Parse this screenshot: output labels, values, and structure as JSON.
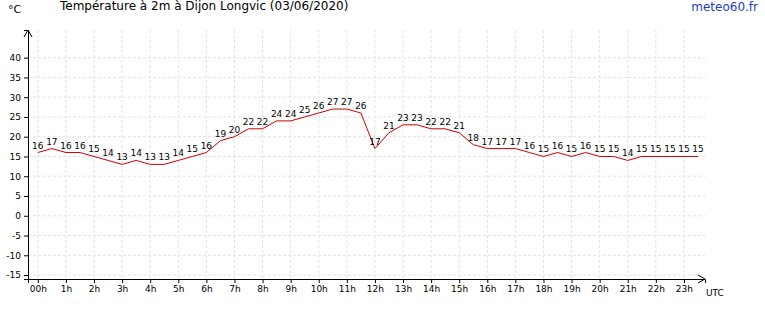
{
  "chart_data": {
    "type": "line",
    "title": "Température à 2m à Dijon Longvic (03/06/2020)",
    "y_label": "°C",
    "x_label": "UTC",
    "annotations": [
      "meteo60.fr"
    ],
    "x": [
      0,
      0.5,
      1,
      1.5,
      2,
      2.5,
      3,
      3.5,
      4,
      4.5,
      5,
      5.5,
      6,
      6.5,
      7,
      7.5,
      8,
      8.5,
      9,
      9.5,
      10,
      10.5,
      11,
      11.5,
      12,
      12.5,
      13,
      13.5,
      14,
      14.5,
      15,
      15.5,
      16,
      16.5,
      17,
      17.5,
      18,
      18.5,
      19,
      19.5,
      20,
      20.5,
      21,
      21.5,
      22,
      22.5,
      23,
      23.5
    ],
    "series": [
      {
        "name": "Température",
        "color": "#cc0000",
        "values": [
          16,
          17,
          16,
          16,
          15,
          14,
          13,
          14,
          13,
          13,
          14,
          15,
          16,
          19,
          20,
          22,
          22,
          24,
          24,
          25,
          26,
          27,
          27,
          26,
          17,
          21,
          23,
          23,
          22,
          22,
          21,
          18,
          17,
          17,
          17,
          16,
          15,
          16,
          15,
          16,
          15,
          15,
          14,
          15,
          15,
          15,
          15,
          15
        ]
      }
    ],
    "xlim": [
      -0.35,
      23.75
    ],
    "xticks": [
      {
        "value": 0,
        "label": "00h"
      },
      {
        "value": 1,
        "label": "1h"
      },
      {
        "value": 2,
        "label": "2h"
      },
      {
        "value": 3,
        "label": "3h"
      },
      {
        "value": 4,
        "label": "4h"
      },
      {
        "value": 5,
        "label": "5h"
      },
      {
        "value": 6,
        "label": "6h"
      },
      {
        "value": 7,
        "label": "7h"
      },
      {
        "value": 8,
        "label": "8h"
      },
      {
        "value": 9,
        "label": "9h"
      },
      {
        "value": 10,
        "label": "10h"
      },
      {
        "value": 11,
        "label": "11h"
      },
      {
        "value": 12,
        "label": "12h"
      },
      {
        "value": 13,
        "label": "13h"
      },
      {
        "value": 14,
        "label": "14h"
      },
      {
        "value": 15,
        "label": "15h"
      },
      {
        "value": 16,
        "label": "16h"
      },
      {
        "value": 17,
        "label": "17h"
      },
      {
        "value": 18,
        "label": "18h"
      },
      {
        "value": 19,
        "label": "19h"
      },
      {
        "value": 20,
        "label": "20h"
      },
      {
        "value": 21,
        "label": "21h"
      },
      {
        "value": 22,
        "label": "22h"
      },
      {
        "value": 23,
        "label": "23h"
      }
    ],
    "ylim": [
      -16,
      47
    ],
    "yticks": [
      -15,
      -10,
      -5,
      0,
      5,
      10,
      15,
      20,
      25,
      30,
      35,
      40
    ],
    "grid": true,
    "data_labels": true
  }
}
